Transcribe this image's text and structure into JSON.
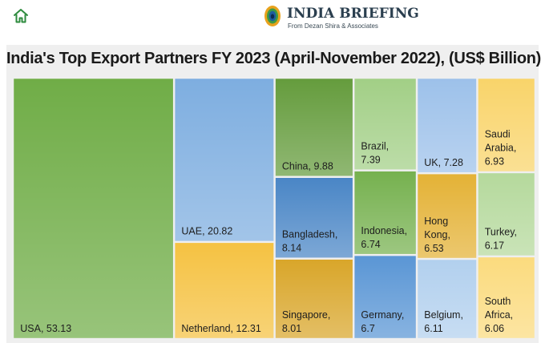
{
  "header": {
    "home_icon": "home-icon",
    "brand_name": "INDIA BRIEFING",
    "brand_sub": "From Dezan Shira & Associates",
    "accent_color": "#2e8b3e"
  },
  "chart_data": {
    "type": "treemap",
    "title": "India's Top Export Partners FY 2023 (April-November 2022), (US$ Billion)",
    "unit": "US$ Billion",
    "items": [
      {
        "name": "USA",
        "value": 53.13,
        "label": "USA, 53.13",
        "color": "#70ad47"
      },
      {
        "name": "UAE",
        "value": 20.82,
        "label": "UAE, 20.82",
        "color": "#7eaee0"
      },
      {
        "name": "Netherland",
        "value": 12.31,
        "label": "Netherland, 12.31",
        "color": "#f5c242"
      },
      {
        "name": "China",
        "value": 9.88,
        "label": "China, 9.88",
        "color": "#659c3d"
      },
      {
        "name": "Bangladesh",
        "value": 8.14,
        "label": "Bangladesh, 8.14",
        "color": "#4a86c6"
      },
      {
        "name": "Singapore",
        "value": 8.01,
        "label": "Singapore, 8.01",
        "color": "#d9a62a"
      },
      {
        "name": "Brazil",
        "value": 7.39,
        "label": "Brazil, 7.39",
        "color": "#a2cf86"
      },
      {
        "name": "UK",
        "value": 7.28,
        "label": "UK, 7.28",
        "color": "#9dc1ea"
      },
      {
        "name": "Saudi Arabia",
        "value": 6.93,
        "label": "Saudi Arabia, 6.93",
        "color": "#f9d46a"
      },
      {
        "name": "Indonesia",
        "value": 6.74,
        "label": "Indonesia, 6.74",
        "color": "#76b14f"
      },
      {
        "name": "Hong Kong",
        "value": 6.53,
        "label": "Hong Kong, 6.53",
        "color": "#e4b236"
      },
      {
        "name": "Turkey",
        "value": 6.17,
        "label": "Turkey, 6.17",
        "color": "#b5d99c"
      },
      {
        "name": "Germany",
        "value": 6.7,
        "label": "Germany, 6.7",
        "color": "#5a96d5"
      },
      {
        "name": "Belgium",
        "value": 6.11,
        "label": "Belgium, 6.11",
        "color": "#b2d0ee"
      },
      {
        "name": "South Africa",
        "value": 6.06,
        "label": "South Africa, 6.06",
        "color": "#fbdb7e"
      }
    ]
  }
}
